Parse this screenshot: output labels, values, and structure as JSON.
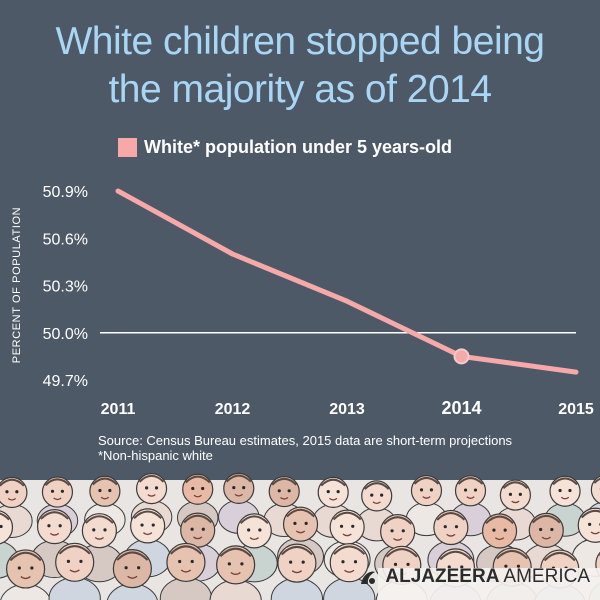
{
  "title_line_1": "White children stopped being",
  "title_line_2": "the majority as of 2014",
  "chart_data": {
    "type": "line",
    "title": "White children stopped being the majority as of 2014",
    "ylabel": "PERCENT OF POPULATION",
    "xlabel": "",
    "x": [
      "2011",
      "2012",
      "2013",
      "2014",
      "2015"
    ],
    "series": [
      {
        "name": "White* population under 5 years-old",
        "values": [
          50.9,
          50.5,
          50.2,
          49.85,
          49.75
        ],
        "color": "#f7a9a9"
      }
    ],
    "highlight_x": "2014",
    "reference_line": 50.0,
    "ylim": [
      49.65,
      50.95
    ],
    "y_ticks": [
      49.7,
      50.0,
      50.3,
      50.6,
      50.9
    ],
    "y_tick_labels": [
      "49.7%",
      "50.0%",
      "50.3%",
      "50.6%",
      "50.9%"
    ],
    "grid": false,
    "legend_position": "top"
  },
  "source_line_1": "Source: Census Bureau estimates, 2015 data are short-term projections",
  "source_line_2": "*Non-hispanic white",
  "brand": {
    "name": "ALJAZEERA",
    "suffix": "AMERICA"
  },
  "colors": {
    "background": "#4d5966",
    "title": "#a9d6f5",
    "series": "#f7a9a9",
    "reference_line": "#ffffff",
    "text": "#ffffff"
  }
}
